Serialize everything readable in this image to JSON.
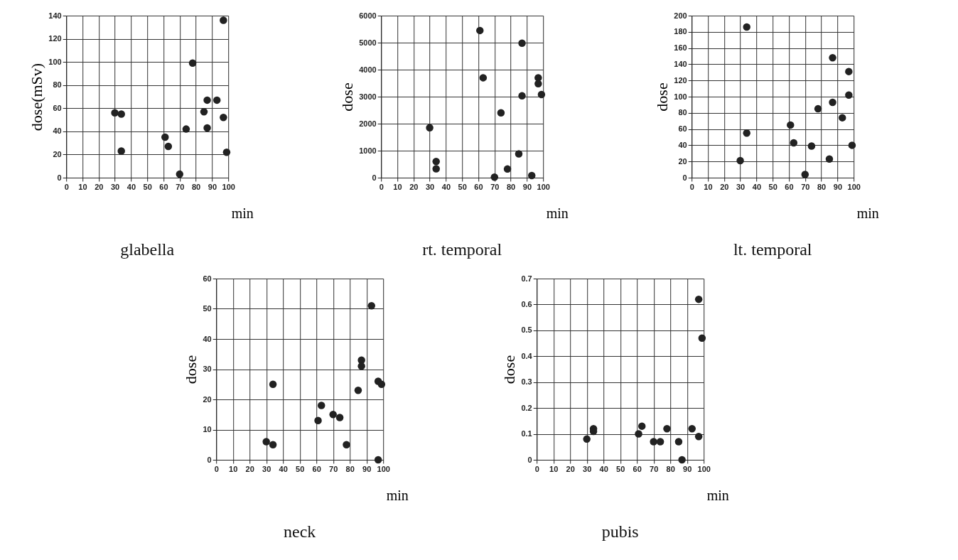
{
  "chart_data": [
    {
      "type": "scatter",
      "title": "glabella",
      "xlabel": "min",
      "ylabel": "dose(mSv)",
      "x": [
        30,
        34,
        34,
        61,
        63,
        70,
        74,
        78,
        85,
        87,
        87,
        93,
        97,
        97,
        99
      ],
      "series": [
        {
          "color": "#222222",
          "values": [
            56,
            55,
            23,
            35,
            27,
            3,
            42,
            99,
            57,
            67,
            43,
            67,
            136,
            52,
            22
          ]
        }
      ],
      "xlim": [
        0,
        100
      ],
      "xticks": [
        0,
        10,
        20,
        30,
        40,
        50,
        60,
        70,
        80,
        90,
        100
      ],
      "ylim": [
        0,
        140
      ],
      "yticks": [
        0,
        20,
        40,
        60,
        80,
        100,
        120,
        140
      ],
      "grid": true,
      "marker": "circle"
    },
    {
      "type": "scatter",
      "title": "rt. temporal",
      "xlabel": "min",
      "ylabel": "dose",
      "x": [
        30,
        34,
        34,
        61,
        63,
        70,
        74,
        78,
        85,
        87,
        87,
        93,
        97,
        97,
        99
      ],
      "series": [
        {
          "color": "#222222",
          "values": [
            1850,
            600,
            330,
            5450,
            3700,
            20,
            2400,
            320,
            880,
            4980,
            3030,
            80,
            3700,
            3480,
            3080
          ]
        }
      ],
      "xlim": [
        0,
        100
      ],
      "xticks": [
        0,
        10,
        20,
        30,
        40,
        50,
        60,
        70,
        80,
        90,
        100
      ],
      "ylim": [
        0,
        6000
      ],
      "yticks": [
        0,
        1000,
        2000,
        3000,
        4000,
        5000,
        6000
      ],
      "grid": true,
      "marker": "circle"
    },
    {
      "type": "scatter",
      "title": "lt. temporal",
      "xlabel": "min",
      "ylabel": "dose",
      "x": [
        30,
        34,
        34,
        61,
        63,
        70,
        74,
        78,
        85,
        87,
        87,
        93,
        97,
        97,
        99
      ],
      "series": [
        {
          "color": "#222222",
          "values": [
            21,
            186,
            55,
            65,
            43,
            4,
            39,
            85,
            23,
            148,
            93,
            74,
            131,
            102,
            40
          ]
        }
      ],
      "xlim": [
        0,
        100
      ],
      "xticks": [
        0,
        10,
        20,
        30,
        40,
        50,
        60,
        70,
        80,
        90,
        100
      ],
      "ylim": [
        0,
        200
      ],
      "yticks": [
        0,
        20,
        40,
        60,
        80,
        100,
        120,
        140,
        160,
        180,
        200
      ],
      "grid": true,
      "marker": "circle"
    },
    {
      "type": "scatter",
      "title": "neck",
      "xlabel": "min",
      "ylabel": "dose",
      "x": [
        30,
        34,
        34,
        61,
        63,
        70,
        74,
        78,
        85,
        87,
        87,
        93,
        97,
        97,
        99
      ],
      "series": [
        {
          "color": "#222222",
          "values": [
            6,
            25,
            5,
            13,
            18,
            15,
            14,
            5,
            23,
            33,
            31,
            51,
            26,
            0,
            25
          ]
        }
      ],
      "xlim": [
        0,
        100
      ],
      "xticks": [
        0,
        10,
        20,
        30,
        40,
        50,
        60,
        70,
        80,
        90,
        100
      ],
      "ylim": [
        0,
        60
      ],
      "yticks": [
        0,
        10,
        20,
        30,
        40,
        50,
        60
      ],
      "grid": true,
      "marker": "circle"
    },
    {
      "type": "scatter",
      "title": "pubis",
      "xlabel": "min",
      "ylabel": "dose",
      "x": [
        30,
        34,
        34,
        61,
        63,
        70,
        74,
        78,
        85,
        87,
        93,
        97,
        97,
        99
      ],
      "series": [
        {
          "color": "#222222",
          "values": [
            0.08,
            0.12,
            0.11,
            0.1,
            0.13,
            0.07,
            0.07,
            0.12,
            0.07,
            0,
            0.12,
            0.62,
            0.09,
            0.47
          ]
        }
      ],
      "xlim": [
        0,
        100
      ],
      "xticks": [
        0,
        10,
        20,
        30,
        40,
        50,
        60,
        70,
        80,
        90,
        100
      ],
      "ylim": [
        0,
        0.7
      ],
      "yticks": [
        0,
        0.1,
        0.2,
        0.3,
        0.4,
        0.5,
        0.6,
        0.7
      ],
      "grid": true,
      "marker": "circle"
    }
  ]
}
